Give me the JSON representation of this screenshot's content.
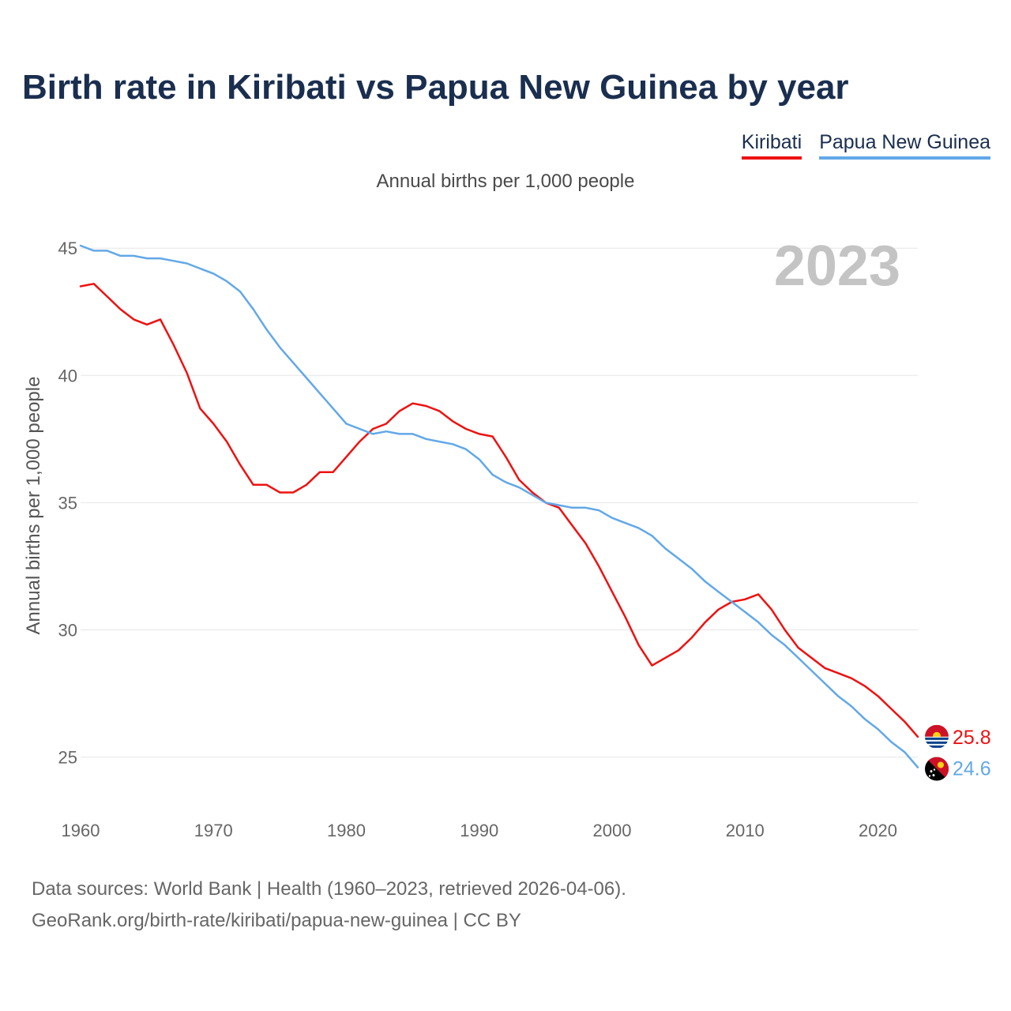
{
  "title": "Birth rate in Kiribati vs Papua New Guinea by year",
  "subtitle": "Annual births per 1,000 people",
  "legend": {
    "kiribati": "Kiribati",
    "png": "Papua New Guinea"
  },
  "source": {
    "line1": "Data sources: World Bank | Health (1960–2023, retrieved 2026-04-06).",
    "line2": "GeoRank.org/birth-rate/kiribati/papua-new-guinea | CC BY"
  },
  "colors": {
    "kiribati": "#ee1111",
    "png": "#62a8e8",
    "title": "#1a2e4f",
    "year": "#c4c4c4"
  },
  "chart_data": {
    "type": "line",
    "title": "Birth rate in Kiribati vs Papua New Guinea by year",
    "year_label": "2023",
    "xlabel": "",
    "ylabel": "Annual births per 1,000 people",
    "xlim": [
      1960,
      2023
    ],
    "ylim": [
      23,
      46
    ],
    "xticks": [
      1960,
      1970,
      1980,
      1990,
      2000,
      2010,
      2020
    ],
    "yticks": [
      25,
      30,
      35,
      40,
      45
    ],
    "grid": true,
    "x": [
      1960,
      1961,
      1962,
      1963,
      1964,
      1965,
      1966,
      1967,
      1968,
      1969,
      1970,
      1971,
      1972,
      1973,
      1974,
      1975,
      1976,
      1977,
      1978,
      1979,
      1980,
      1981,
      1982,
      1983,
      1984,
      1985,
      1986,
      1987,
      1988,
      1989,
      1990,
      1991,
      1992,
      1993,
      1994,
      1995,
      1996,
      1997,
      1998,
      1999,
      2000,
      2001,
      2002,
      2003,
      2004,
      2005,
      2006,
      2007,
      2008,
      2009,
      2010,
      2011,
      2012,
      2013,
      2014,
      2015,
      2016,
      2017,
      2018,
      2019,
      2020,
      2021,
      2022,
      2023
    ],
    "series": [
      {
        "name": "Kiribati",
        "color": "#ee1111",
        "end_label": "25.8",
        "values": [
          43.5,
          43.6,
          43.1,
          42.6,
          42.2,
          42.0,
          42.2,
          41.2,
          40.1,
          38.7,
          38.1,
          37.4,
          36.5,
          35.7,
          35.7,
          35.4,
          35.4,
          35.7,
          36.2,
          36.2,
          36.8,
          37.4,
          37.9,
          38.1,
          38.6,
          38.9,
          38.8,
          38.6,
          38.2,
          37.9,
          37.7,
          37.6,
          36.8,
          35.9,
          35.4,
          35.0,
          34.8,
          34.1,
          33.4,
          32.5,
          31.5,
          30.5,
          29.4,
          28.6,
          28.9,
          29.2,
          29.7,
          30.3,
          30.8,
          31.1,
          31.2,
          31.4,
          30.8,
          30.0,
          29.3,
          28.9,
          28.5,
          28.3,
          28.1,
          27.8,
          27.4,
          26.9,
          26.4,
          25.8
        ]
      },
      {
        "name": "Papua New Guinea",
        "color": "#62a8e8",
        "end_label": "24.6",
        "values": [
          45.1,
          44.9,
          44.9,
          44.7,
          44.7,
          44.6,
          44.6,
          44.5,
          44.4,
          44.2,
          44.0,
          43.7,
          43.3,
          42.6,
          41.8,
          41.1,
          40.5,
          39.9,
          39.3,
          38.7,
          38.1,
          37.9,
          37.7,
          37.8,
          37.7,
          37.7,
          37.5,
          37.4,
          37.3,
          37.1,
          36.7,
          36.1,
          35.8,
          35.6,
          35.3,
          35.0,
          34.9,
          34.8,
          34.8,
          34.7,
          34.4,
          34.2,
          34.0,
          33.7,
          33.2,
          32.8,
          32.4,
          31.9,
          31.5,
          31.1,
          30.7,
          30.3,
          29.8,
          29.4,
          28.9,
          28.4,
          27.9,
          27.4,
          27.0,
          26.5,
          26.1,
          25.6,
          25.2,
          24.6
        ]
      }
    ]
  }
}
